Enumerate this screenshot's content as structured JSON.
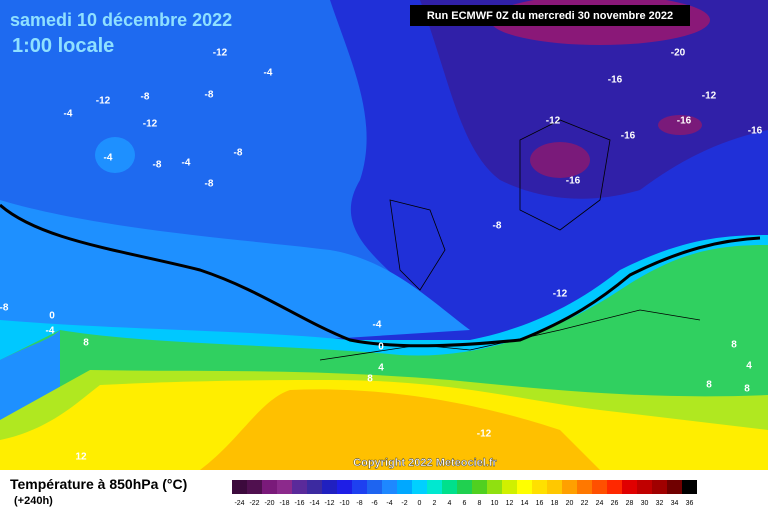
{
  "header": {
    "date": "samedi 10 décembre 2022",
    "time": "1:00 locale",
    "run": "Run ECMWF 0Z du mercredi 30 novembre 2022"
  },
  "map": {
    "contour_labels": [
      -12,
      -4,
      -12,
      -8,
      -8,
      -4,
      -12,
      -4,
      -8,
      -4,
      -8,
      -8,
      -20,
      -16,
      -12,
      -12,
      -16,
      -16,
      -16,
      -16,
      -8,
      -12,
      -8,
      0,
      -4,
      8,
      -4,
      0,
      4,
      8,
      8,
      8,
      4,
      8,
      -12,
      12
    ]
  },
  "copyright": "Copyright 2022 Meteociel.fr",
  "legend": {
    "title": "Température à 850hPa (°C)",
    "lead": "(+240h)",
    "values": [
      -24,
      -22,
      -20,
      -18,
      -16,
      -14,
      -12,
      -10,
      -8,
      -6,
      -4,
      -2,
      0,
      2,
      4,
      6,
      8,
      10,
      12,
      14,
      16,
      18,
      20,
      22,
      24,
      26,
      28,
      30,
      32,
      34,
      36
    ],
    "colors": [
      "#3c0a3c",
      "#50104f",
      "#7a1a7a",
      "#8c2a8c",
      "#5a2a9a",
      "#3c2aa0",
      "#2020c0",
      "#1e1ee6",
      "#1e40f0",
      "#1e64f0",
      "#1e88ff",
      "#00a8ff",
      "#00d0ff",
      "#00e8d0",
      "#00e08c",
      "#20d050",
      "#50d020",
      "#90e010",
      "#d0f000",
      "#ffff00",
      "#ffe000",
      "#ffc800",
      "#ffa000",
      "#ff7800",
      "#ff5000",
      "#ff2800",
      "#e00000",
      "#c00000",
      "#a00000",
      "#700000",
      "#000000"
    ]
  }
}
